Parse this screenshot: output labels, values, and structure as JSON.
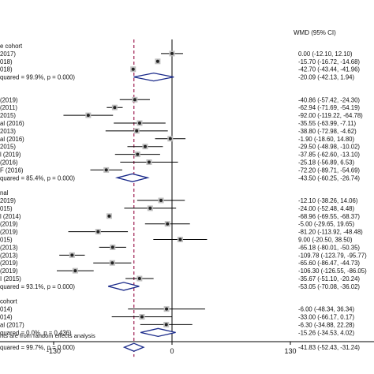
{
  "chart_data": {
    "type": "forest",
    "header": {
      "left": "",
      "right": "WMD (95% CI)"
    },
    "x_ticks": [
      -130,
      0,
      130
    ],
    "null_line": 0,
    "pooled_line": -41.83,
    "groups": [
      {
        "label": "e cohort",
        "studies": [
          {
            "label": "2017)",
            "est": 0.0,
            "ci": "0.00 (-12.10, 12.10)"
          },
          {
            "label": "018)",
            "est": -15.7,
            "ci": "-15.70 (-16.72, -14.68)"
          },
          {
            "label": "018)",
            "est": -42.7,
            "ci": "-42.70 (-43.44, -41.96)"
          }
        ],
        "subtotal": {
          "label": "quared = 99.9%, p = 0.000)",
          "est": -20.09,
          "lo": -42.13,
          "hi": 1.94,
          "ci": "-20.09 (-42.13, 1.94)"
        }
      },
      {
        "label": "",
        "studies": [
          {
            "label": "(2019)",
            "est": -40.86,
            "ci": "-40.86 (-57.42, -24.30)"
          },
          {
            "label": "(2011)",
            "est": -62.94,
            "ci": "-62.94 (-71.69, -54.19)"
          },
          {
            "label": "2015)",
            "est": -92.0,
            "ci": "-92.00 (-119.22, -64.78)"
          },
          {
            "label": "al (2016)",
            "est": -35.55,
            "ci": "-35.55 (-63.99, -7.11)"
          },
          {
            "label": "2013)",
            "est": -38.8,
            "ci": "-38.80 (-72.98, -4.62)"
          },
          {
            "label": "al (2016)",
            "est": -1.9,
            "ci": "-1.90 (-18.60, 14.80)"
          },
          {
            "label": "2015)",
            "est": -29.5,
            "ci": "-29.50 (-48.98, -10.02)"
          },
          {
            "label": "l (2019)",
            "est": -37.85,
            "ci": "-37.85 (-62.60, -13.10)"
          },
          {
            "label": "(2016)",
            "est": -25.18,
            "ci": "-25.18 (-56.89, 6.53)"
          },
          {
            "label": "F (2016)",
            "est": -72.2,
            "ci": "-72.20 (-89.71, -54.69)"
          }
        ],
        "subtotal": {
          "label": "quared = 85.4%, p = 0.000)",
          "est": -43.5,
          "lo": -60.25,
          "hi": -26.74,
          "ci": "-43.50 (-60.25, -26.74)"
        }
      },
      {
        "label": "nal",
        "studies": [
          {
            "label": "2019)",
            "est": -12.1,
            "ci": "-12.10 (-38.26, 14.06)"
          },
          {
            "label": "015)",
            "est": -24.0,
            "ci": "-24.00 (-52.48, 4.48)"
          },
          {
            "label": "l (2014)",
            "est": -68.96,
            "ci": "-68.96 (-69.55, -68.37)"
          },
          {
            "label": "(2019)",
            "est": -5.0,
            "ci": "-5.00 (-29.65, 19.65)"
          },
          {
            "label": "(2019)",
            "est": -81.2,
            "ci": "-81.20 (-113.92, -48.48)"
          },
          {
            "label": "015)",
            "est": 9.0,
            "ci": "9.00 (-20.50, 38.50)"
          },
          {
            "label": "(2013)",
            "est": -65.18,
            "ci": "-65.18 (-80.01, -50.35)"
          },
          {
            "label": "(2013)",
            "est": -109.78,
            "ci": "-109.78 (-123.79, -95.77)"
          },
          {
            "label": "(2019)",
            "est": -65.6,
            "ci": "-65.60 (-86.47, -44.73)"
          },
          {
            "label": "(2019)",
            "est": -106.3,
            "ci": "-106.30 (-126.55, -86.05)"
          },
          {
            "label": "I (2015)",
            "est": -35.67,
            "ci": "-35.67 (-51.10, -20.24)"
          }
        ],
        "subtotal": {
          "label": "quared = 93.1%, p = 0.000)",
          "est": -53.05,
          "lo": -70.08,
          "hi": -36.02,
          "ci": "-53.05 (-70.08, -36.02)"
        }
      },
      {
        "label": "cohort",
        "studies": [
          {
            "label": "014)",
            "est": -6.0,
            "ci": "-6.00 (-48.34, 36.34)"
          },
          {
            "label": "014)",
            "est": -33.0,
            "ci": "-33.00 (-66.17, 0.17)"
          },
          {
            "label": "al (2017)",
            "est": -6.3,
            "ci": "-6.30 (-34.88, 22.28)"
          }
        ],
        "subtotal": {
          "label": "quared = 0.0%, p = 0.436)",
          "est": -15.26,
          "lo": -34.53,
          "hi": 4.02,
          "ci": "-15.26 (-34.53, 4.02)"
        }
      }
    ],
    "overall": {
      "label": "quared = 99.7%, p = 0.000)",
      "est": -41.83,
      "lo": -52.43,
      "hi": -31.24,
      "ci": "-41.83 (-52.43, -31.24)"
    },
    "footnote": "hts are from random effects analysis",
    "colors": {
      "diamond": "#1a2a8a",
      "pooled_line": "#9b1b4e",
      "marker": "#222222",
      "box": "#bfbfbf",
      "line": "#000000"
    }
  }
}
